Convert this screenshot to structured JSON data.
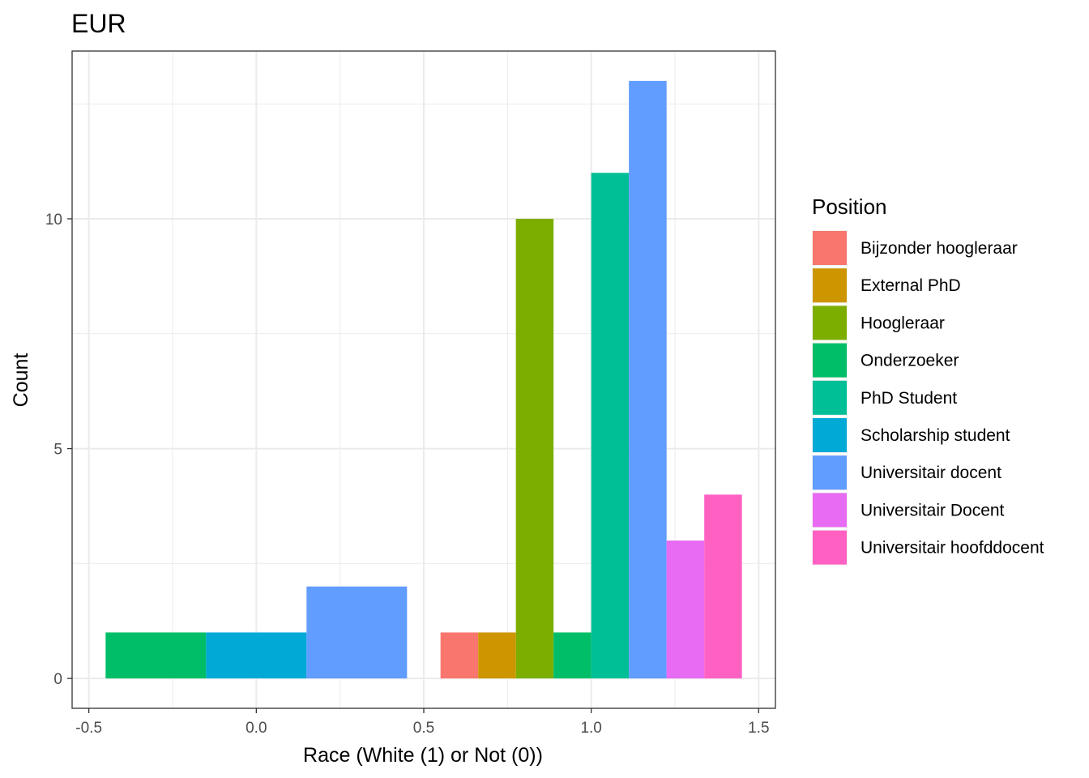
{
  "chart_data": {
    "type": "bar",
    "title": "EUR",
    "xlabel": "Race (White (1) or Not (0))",
    "ylabel": "Count",
    "xlim": [
      -0.5,
      1.5
    ],
    "ylim": [
      0,
      13
    ],
    "x_ticks": [
      "-0.5",
      "0.0",
      "0.5",
      "1.0",
      "1.5"
    ],
    "x_tick_values": [
      -0.5,
      0.0,
      0.5,
      1.0,
      1.5
    ],
    "y_ticks": [
      "0",
      "5",
      "10"
    ],
    "y_tick_values": [
      0,
      5,
      10
    ],
    "grid": true,
    "legend": {
      "title": "Position",
      "placement": "right",
      "entries": [
        {
          "label": "Bijzonder hoogleraar",
          "color": "#F8766D"
        },
        {
          "label": "External PhD",
          "color": "#CD9600"
        },
        {
          "label": "Hoogleraar",
          "color": "#7CAE00"
        },
        {
          "label": "Onderzoeker",
          "color": "#00BE67"
        },
        {
          "label": "PhD Student",
          "color": "#00BF96"
        },
        {
          "label": "Scholarship student",
          "color": "#00A9D6"
        },
        {
          "label": "Universitair docent",
          "color": "#619CFF"
        },
        {
          "label": "Universitair Docent",
          "color": "#E76BF3"
        },
        {
          "label": "Universitair hoofddocent",
          "color": "#FF61C3"
        }
      ]
    },
    "bars": [
      {
        "category": "Onderzoeker",
        "xmin": -0.45,
        "xmax": -0.15,
        "value": 1
      },
      {
        "category": "Scholarship student",
        "xmin": -0.15,
        "xmax": 0.15,
        "value": 1
      },
      {
        "category": "Universitair docent",
        "xmin": 0.15,
        "xmax": 0.45,
        "value": 2
      },
      {
        "category": "Bijzonder hoogleraar",
        "xmin": 0.55,
        "xmax": 0.6625,
        "value": 1
      },
      {
        "category": "External PhD",
        "xmin": 0.6625,
        "xmax": 0.775,
        "value": 1
      },
      {
        "category": "Hoogleraar",
        "xmin": 0.775,
        "xmax": 0.8875,
        "value": 10
      },
      {
        "category": "Onderzoeker",
        "xmin": 0.8875,
        "xmax": 1.0,
        "value": 1
      },
      {
        "category": "PhD Student",
        "xmin": 1.0,
        "xmax": 1.1125,
        "value": 11
      },
      {
        "category": "Universitair docent",
        "xmin": 1.1125,
        "xmax": 1.225,
        "value": 13
      },
      {
        "category": "Universitair Docent",
        "xmin": 1.225,
        "xmax": 1.3375,
        "value": 3
      },
      {
        "category": "Universitair hoofddocent",
        "xmin": 1.3375,
        "xmax": 1.45,
        "value": 4
      }
    ]
  }
}
